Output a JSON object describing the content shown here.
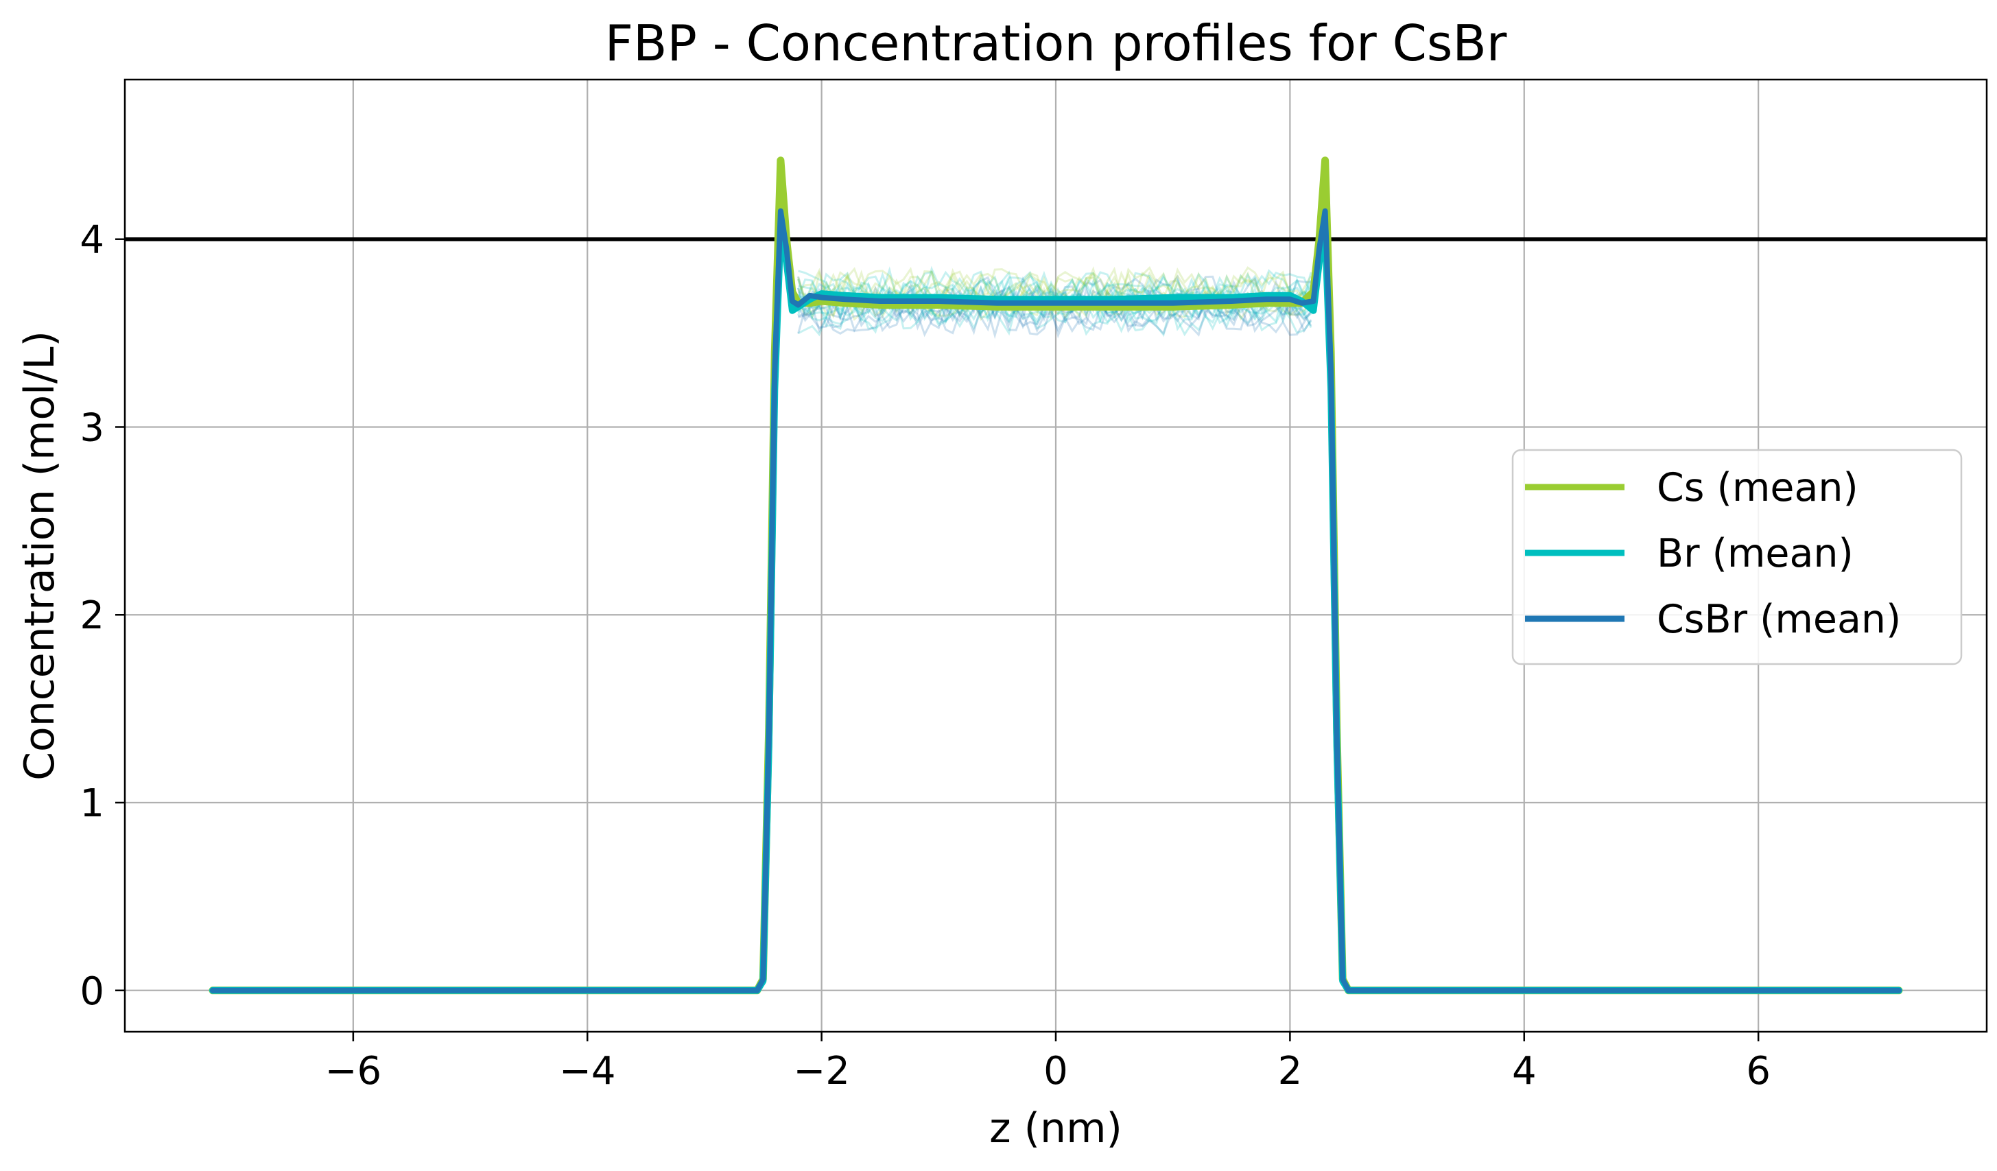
{
  "chart_data": {
    "type": "line",
    "title": "FBP - Concentration profiles for CsBr",
    "xlabel": "z (nm)",
    "ylabel": "Concentration (mol/L)",
    "xlim": [
      -7.95,
      7.95
    ],
    "ylim": [
      -0.22,
      4.85
    ],
    "xticks": [
      -6,
      -4,
      -2,
      0,
      2,
      4,
      6
    ],
    "xtick_labels": [
      "−6",
      "−4",
      "−2",
      "0",
      "2",
      "4",
      "6"
    ],
    "yticks": [
      0,
      1,
      2,
      3,
      4
    ],
    "ytick_labels": [
      "0",
      "1",
      "2",
      "3",
      "4"
    ],
    "grid": true,
    "legend_position": "center-right",
    "reference_line": {
      "y": 4.0,
      "color": "#000000"
    },
    "series": [
      {
        "name": "Cs (mean)",
        "color": "#9acd32",
        "x": [
          -7.2,
          -2.55,
          -2.5,
          -2.45,
          -2.4,
          -2.35,
          -2.3,
          -2.25,
          -2.2,
          -2.1,
          -2.0,
          -1.8,
          -1.5,
          -1.0,
          -0.5,
          0,
          0.5,
          1.0,
          1.5,
          1.8,
          2.0,
          2.1,
          2.2,
          2.25,
          2.3,
          2.35,
          2.4,
          2.45,
          2.5,
          2.55,
          7.2
        ],
        "y": [
          0.0,
          0.0,
          0.06,
          1.4,
          3.4,
          4.42,
          4.0,
          3.72,
          3.66,
          3.66,
          3.67,
          3.66,
          3.65,
          3.65,
          3.64,
          3.64,
          3.64,
          3.64,
          3.65,
          3.66,
          3.66,
          3.66,
          3.72,
          4.0,
          4.42,
          3.4,
          1.4,
          0.06,
          0.0,
          0.0,
          0.0
        ]
      },
      {
        "name": "Br (mean)",
        "color": "#00bfbf",
        "x": [
          -7.2,
          -2.55,
          -2.5,
          -2.45,
          -2.4,
          -2.35,
          -2.3,
          -2.25,
          -2.2,
          -2.1,
          -2.0,
          -1.8,
          -1.5,
          -1.0,
          -0.5,
          0,
          0.5,
          1.0,
          1.5,
          1.8,
          2.0,
          2.1,
          2.2,
          2.25,
          2.3,
          2.35,
          2.4,
          2.45,
          2.5,
          2.55,
          7.2
        ],
        "y": [
          0.0,
          0.0,
          0.05,
          1.3,
          3.2,
          4.05,
          3.88,
          3.62,
          3.64,
          3.68,
          3.71,
          3.7,
          3.69,
          3.69,
          3.68,
          3.68,
          3.68,
          3.69,
          3.69,
          3.7,
          3.7,
          3.67,
          3.62,
          3.88,
          4.05,
          3.2,
          1.3,
          0.05,
          0.0,
          0.0,
          0.0
        ]
      },
      {
        "name": "CsBr (mean)",
        "color": "#1f77b4",
        "x": [
          -7.2,
          -2.55,
          -2.5,
          -2.45,
          -2.4,
          -2.35,
          -2.3,
          -2.25,
          -2.2,
          -2.1,
          -2.0,
          -1.8,
          -1.5,
          -1.0,
          -0.5,
          0,
          0.5,
          1.0,
          1.5,
          1.8,
          2.0,
          2.1,
          2.2,
          2.25,
          2.3,
          2.35,
          2.4,
          2.45,
          2.5,
          2.55,
          7.2
        ],
        "y": [
          0.0,
          0.0,
          0.06,
          1.35,
          3.3,
          4.15,
          3.95,
          3.67,
          3.65,
          3.7,
          3.69,
          3.68,
          3.67,
          3.67,
          3.66,
          3.66,
          3.66,
          3.66,
          3.67,
          3.68,
          3.68,
          3.66,
          3.67,
          3.95,
          4.15,
          3.3,
          1.35,
          0.06,
          0.0,
          0.0,
          0.0
        ]
      }
    ]
  }
}
